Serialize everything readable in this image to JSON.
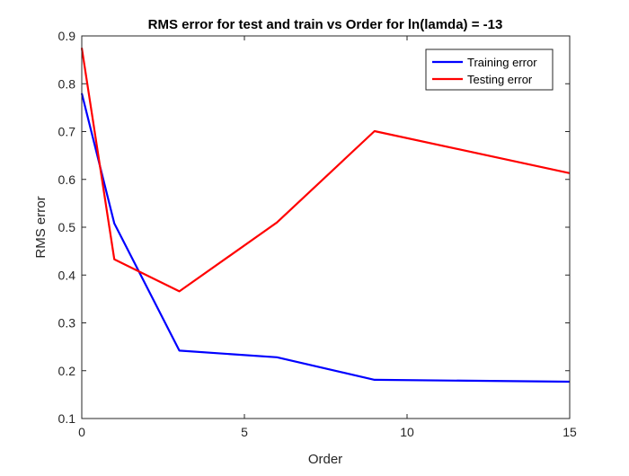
{
  "chart_data": {
    "type": "line",
    "title": "RMS error for test and train vs Order for ln(lamda) = -13",
    "xlabel": "Order",
    "ylabel": "RMS error",
    "xlim": [
      0,
      15
    ],
    "ylim": [
      0.1,
      0.9
    ],
    "xticks": [
      0,
      5,
      10,
      15
    ],
    "yticks": [
      0.1,
      0.2,
      0.3,
      0.4,
      0.5,
      0.6,
      0.7,
      0.8,
      0.9
    ],
    "xtick_labels": [
      "0",
      "5",
      "10",
      "15"
    ],
    "ytick_labels": [
      "0.1",
      "0.2",
      "0.3",
      "0.4",
      "0.5",
      "0.6",
      "0.7",
      "0.8",
      "0.9"
    ],
    "grid": false,
    "legend_position": "top-right",
    "series": [
      {
        "name": "Training error",
        "color": "#0000ff",
        "x": [
          0,
          1,
          3,
          6,
          9,
          15
        ],
        "y": [
          0.78,
          0.508,
          0.242,
          0.228,
          0.181,
          0.177
        ]
      },
      {
        "name": "Testing error",
        "color": "#ff0000",
        "x": [
          0,
          1,
          3,
          6,
          9,
          15
        ],
        "y": [
          0.875,
          0.433,
          0.366,
          0.51,
          0.701,
          0.613
        ]
      }
    ]
  }
}
